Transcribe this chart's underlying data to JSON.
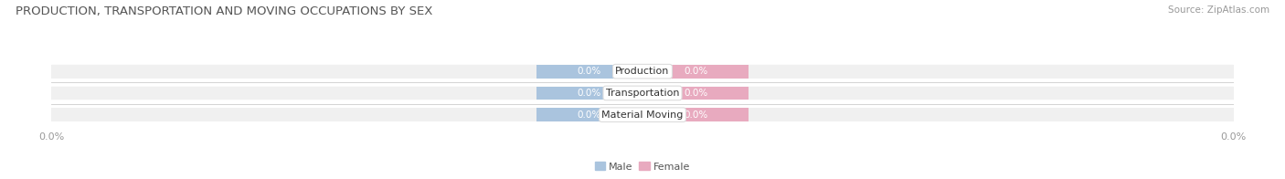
{
  "title": "PRODUCTION, TRANSPORTATION AND MOVING OCCUPATIONS BY SEX",
  "source": "Source: ZipAtlas.com",
  "categories": [
    "Production",
    "Transportation",
    "Material Moving"
  ],
  "male_values": [
    0.0,
    0.0,
    0.0
  ],
  "female_values": [
    0.0,
    0.0,
    0.0
  ],
  "male_color": "#aac4de",
  "female_color": "#e8aabf",
  "bar_bg_color": "#f0f0f0",
  "row_bg_color": "#f5f5f5",
  "male_label": "Male",
  "female_label": "Female",
  "title_fontsize": 9.5,
  "source_fontsize": 7.5,
  "bar_height": 0.62,
  "background_color": "#ffffff",
  "value_label_color": "#ffffff",
  "category_label_color": "#333333",
  "tick_label_color": "#999999"
}
